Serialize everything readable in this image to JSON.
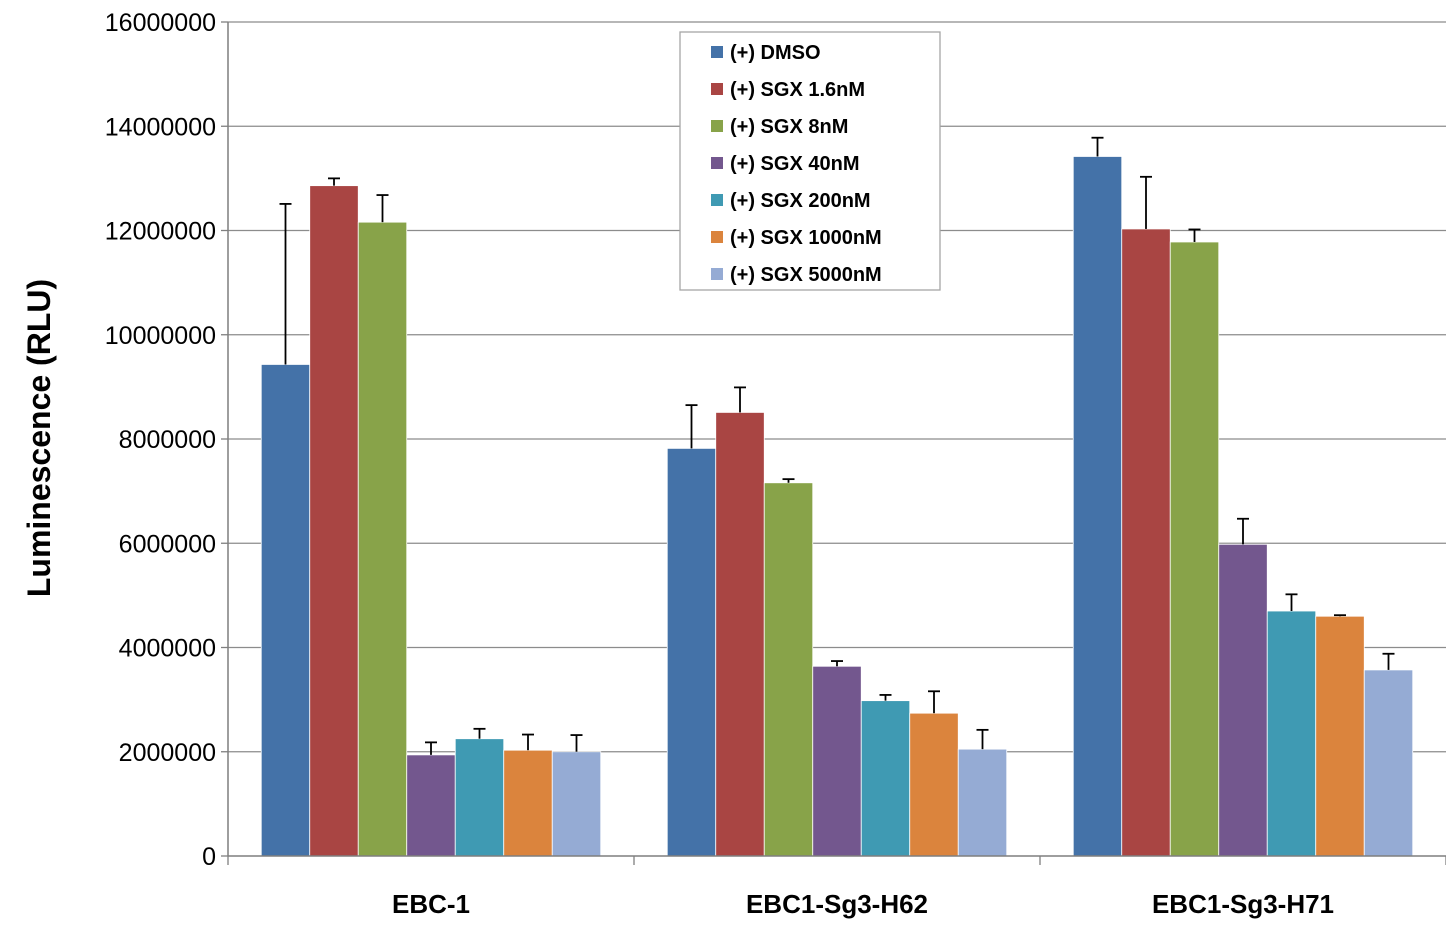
{
  "chart_data": {
    "type": "bar",
    "title": "",
    "xlabel": "",
    "ylabel": "Luminescence (RLU)",
    "ylim": [
      0,
      16000000
    ],
    "yticks": [
      0,
      2000000,
      4000000,
      6000000,
      8000000,
      10000000,
      12000000,
      14000000,
      16000000
    ],
    "grid": true,
    "legend_position": "top-center",
    "categories": [
      "EBC-1",
      "EBC1-Sg3-H62",
      "EBC1-Sg3-H71"
    ],
    "series": [
      {
        "name": "(+) DMSO",
        "color": "#4472a8",
        "values": [
          9430000,
          7820000,
          13420000
        ],
        "errors": [
          3080000,
          830000,
          360000
        ]
      },
      {
        "name": "(+) SGX 1.6nM",
        "color": "#a94543",
        "values": [
          12860000,
          8510000,
          12030000
        ],
        "errors": [
          140000,
          480000,
          1000000
        ]
      },
      {
        "name": "(+) SGX 8nM",
        "color": "#88a349",
        "values": [
          12160000,
          7160000,
          11780000
        ],
        "errors": [
          520000,
          70000,
          240000
        ]
      },
      {
        "name": "(+) SGX 40nM",
        "color": "#73578e",
        "values": [
          1940000,
          3640000,
          5980000
        ],
        "errors": [
          240000,
          100000,
          490000
        ]
      },
      {
        "name": "(+) SGX 200nM",
        "color": "#3f9ab3",
        "values": [
          2250000,
          2980000,
          4700000
        ],
        "errors": [
          190000,
          110000,
          320000
        ]
      },
      {
        "name": "(+) SGX 1000nM",
        "color": "#db843d",
        "values": [
          2030000,
          2740000,
          4600000
        ],
        "errors": [
          300000,
          420000,
          20000
        ]
      },
      {
        "name": "(+) SGX 5000nM",
        "color": "#95abd4",
        "values": [
          2000000,
          2050000,
          3570000
        ],
        "errors": [
          320000,
          370000,
          310000
        ]
      }
    ]
  }
}
